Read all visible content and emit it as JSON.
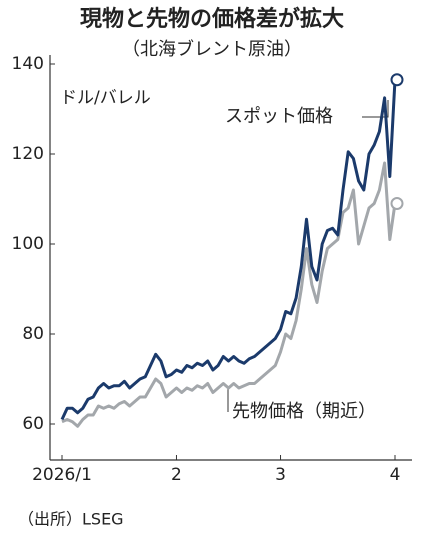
{
  "chart_data": {
    "type": "line",
    "title": "現物と先物の価格差が拡大",
    "subtitle": "（北海ブレント原油）",
    "y_label": "ドル/バレル",
    "source": "（出所）LSEG",
    "categories": [
      "2026/1",
      null,
      null,
      null,
      null,
      null,
      null,
      null,
      null,
      null,
      null,
      null,
      null,
      null,
      null,
      null,
      null,
      null,
      null,
      null,
      null,
      null,
      "2",
      null,
      null,
      null,
      null,
      null,
      null,
      null,
      null,
      null,
      null,
      null,
      null,
      null,
      null,
      null,
      null,
      null,
      null,
      null,
      "3",
      null,
      null,
      null,
      null,
      null,
      null,
      null,
      null,
      null,
      null,
      null,
      null,
      null,
      null,
      null,
      null,
      null,
      null,
      null,
      null,
      null,
      "4"
    ],
    "series": [
      {
        "name": "スポット価格",
        "color": "#1b3a6b",
        "values": [
          61,
          63.5,
          63.5,
          62.5,
          63.5,
          65.5,
          66,
          68,
          69,
          68,
          68.5,
          68.5,
          69.5,
          68,
          69,
          70,
          70.5,
          73,
          75.5,
          74,
          70.5,
          71,
          72,
          71.5,
          73,
          72.5,
          73.5,
          73,
          74,
          72,
          73,
          75,
          74,
          75,
          74,
          73.5,
          74.5,
          75,
          76,
          77,
          78,
          79,
          81,
          85,
          84.5,
          88,
          95,
          105.5,
          95,
          92,
          100,
          103,
          103.5,
          102,
          112,
          120.5,
          119,
          114,
          112,
          120,
          122,
          125,
          132.5,
          115,
          136.5
        ]
      },
      {
        "name": "先物価格（期近）",
        "color": "#a3a7ab",
        "values": [
          60.5,
          61,
          60.5,
          59.5,
          61,
          62,
          62,
          64,
          63.5,
          64,
          63.5,
          64.5,
          65,
          64,
          65,
          66,
          66,
          68,
          70,
          69,
          66,
          67,
          68,
          67,
          68,
          67.5,
          68.5,
          68,
          69,
          67,
          68,
          69,
          68,
          69,
          68,
          68.5,
          69,
          69,
          70,
          71,
          72,
          73,
          76,
          80,
          79,
          83,
          90,
          99,
          91,
          87,
          94,
          99,
          100,
          101,
          107,
          108,
          112,
          100,
          104,
          108,
          109,
          112,
          118,
          101,
          109
        ]
      }
    ],
    "ylim": [
      52,
      142
    ],
    "yticks": [
      60,
      80,
      100,
      120,
      140
    ]
  }
}
